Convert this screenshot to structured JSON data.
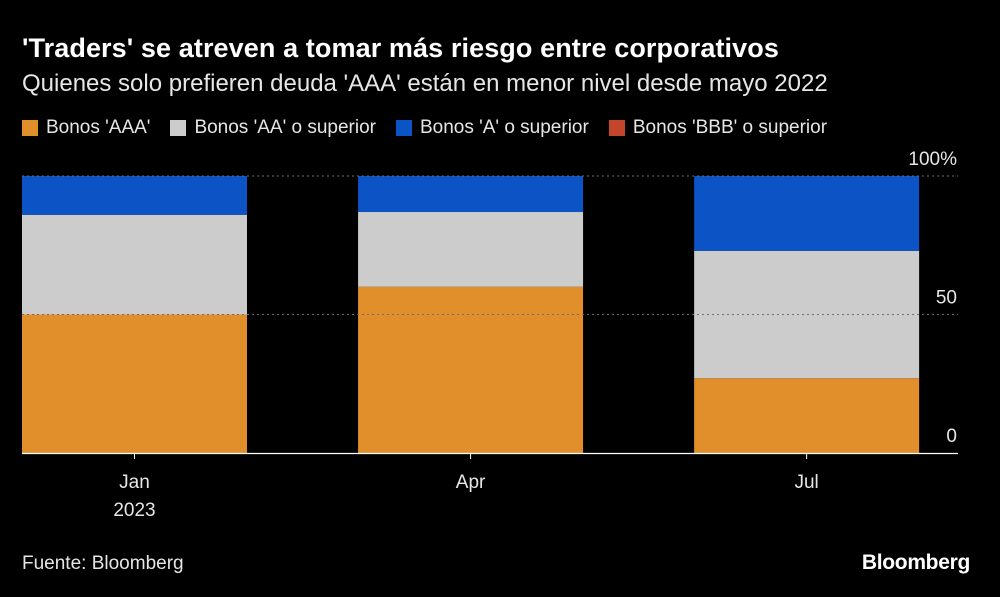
{
  "title": "'Traders' se atreven a tomar más riesgo entre corporativos",
  "subtitle": "Quienes solo prefieren deuda 'AAA' están en menor nivel desde mayo 2022",
  "source": "Fuente: Bloomberg",
  "brand": "Bloomberg",
  "colors": {
    "background": "#000000",
    "aaa": "#e08f2a",
    "aa": "#cccccc",
    "a": "#0c53c5",
    "bbb": "#c4452a",
    "gridline": "#6e6e6e",
    "axis": "#ffffff"
  },
  "chart_data": {
    "type": "bar",
    "stacked": true,
    "categories": [
      "Jan",
      "Apr",
      "Jul"
    ],
    "category_sublabels": [
      "2023",
      "",
      ""
    ],
    "series": [
      {
        "name": "Bonos 'AAA'",
        "color": "#e08f2a",
        "values": [
          50,
          60,
          27
        ]
      },
      {
        "name": "Bonos 'AA' o superior",
        "color": "#cccccc",
        "values": [
          36,
          27,
          46
        ]
      },
      {
        "name": "Bonos 'A' o superior",
        "color": "#0c53c5",
        "values": [
          14,
          13,
          27
        ]
      },
      {
        "name": "Bonos 'BBB' o superior",
        "color": "#c4452a",
        "values": [
          0,
          0,
          0
        ]
      }
    ],
    "ylim": [
      0,
      100
    ],
    "yticks": [
      {
        "value": 0,
        "label": "0"
      },
      {
        "value": 50,
        "label": "50"
      },
      {
        "value": 100,
        "label": "100%"
      }
    ],
    "grid": true,
    "legend_position": "top-left",
    "ytick_position": "right"
  }
}
